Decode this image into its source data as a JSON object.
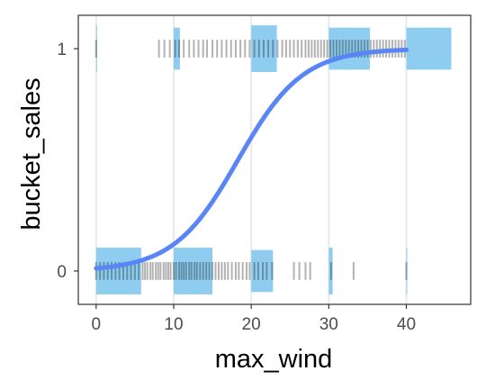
{
  "chart_data": {
    "type": "scatter",
    "title": "",
    "xlabel": "max_wind",
    "ylabel": "bucket_sales",
    "xlim": [
      -2.3,
      48.3
    ],
    "ylim": [
      -0.15,
      1.15
    ],
    "x_ticks": [
      0,
      10,
      20,
      30,
      40
    ],
    "x_tick_labels": [
      "0",
      "10",
      "20",
      "30",
      "40"
    ],
    "y_ticks": [
      0,
      1
    ],
    "y_tick_labels": [
      "0",
      "1"
    ],
    "grid": "vertical major lines",
    "colors": {
      "bins": "#8ecdf0",
      "curve": "#5a86f5",
      "rug": "#000000",
      "grid": "#ebebeb",
      "panel_border": "#333333"
    },
    "bins_y0": [
      {
        "x0": 0,
        "x1": 5.8,
        "n": 1.0
      },
      {
        "x0": 10,
        "x1": 15,
        "n": 1.0
      },
      {
        "x0": 20,
        "x1": 22.8,
        "n": 0.9
      },
      {
        "x0": 30,
        "x1": 30.5,
        "n": 1.0
      },
      {
        "x0": 40,
        "x1": 40.1,
        "n": 1.0
      }
    ],
    "bins_y1": [
      {
        "x0": 0,
        "x1": 0.1,
        "n": 1.0
      },
      {
        "x0": 10,
        "x1": 10.8,
        "n": 0.9
      },
      {
        "x0": 20,
        "x1": 23.3,
        "n": 1.0
      },
      {
        "x0": 30,
        "x1": 35.3,
        "n": 0.9
      },
      {
        "x0": 40,
        "x1": 45.8,
        "n": 0.9
      }
    ],
    "logistic_curve": {
      "x_min": 0,
      "x_max": 40,
      "midpoint": 18.3,
      "slope": 0.24
    },
    "points_y0": [
      0,
      0.5,
      1,
      1.5,
      2,
      2.5,
      3,
      3.5,
      4,
      4.5,
      5,
      5.5,
      6,
      6.3,
      6.6,
      7,
      7.3,
      7.7,
      8,
      8.3,
      8.7,
      9,
      9.3,
      9.6,
      10,
      10.3,
      10.7,
      11,
      11.3,
      11.6,
      12,
      12.3,
      12.7,
      13,
      13.4,
      13.8,
      14.2,
      14.6,
      15,
      15.4,
      15.8,
      16.2,
      16.6,
      17,
      17.5,
      18,
      18.4,
      18.9,
      19.4,
      19.8,
      20.4,
      20.9,
      21.5,
      22,
      22.7,
      25.5,
      26.2,
      27,
      27.6,
      30.3,
      33.2,
      40
    ],
    "points_y1": [
      0,
      8.1,
      8.8,
      9.5,
      10.2,
      10.7,
      11.3,
      12,
      12.6,
      13.2,
      13.8,
      14.3,
      15,
      15.6,
      16.2,
      16.8,
      17.4,
      18,
      18.6,
      19.2,
      19.8,
      20.4,
      21,
      21.6,
      22.2,
      22.8,
      23.4,
      24,
      24.5,
      25,
      25.5,
      26,
      26.5,
      27,
      27.4,
      27.8,
      28.2,
      28.6,
      29,
      29.4,
      29.8,
      30.2,
      30.6,
      31,
      31.4,
      31.8,
      32.2,
      32.6,
      33,
      33.4,
      33.8,
      34.2,
      34.6,
      35,
      35.4,
      35.8,
      36.2,
      36.6,
      37,
      37.4,
      37.8,
      38.2,
      38.6,
      39,
      39.4,
      39.8
    ]
  }
}
